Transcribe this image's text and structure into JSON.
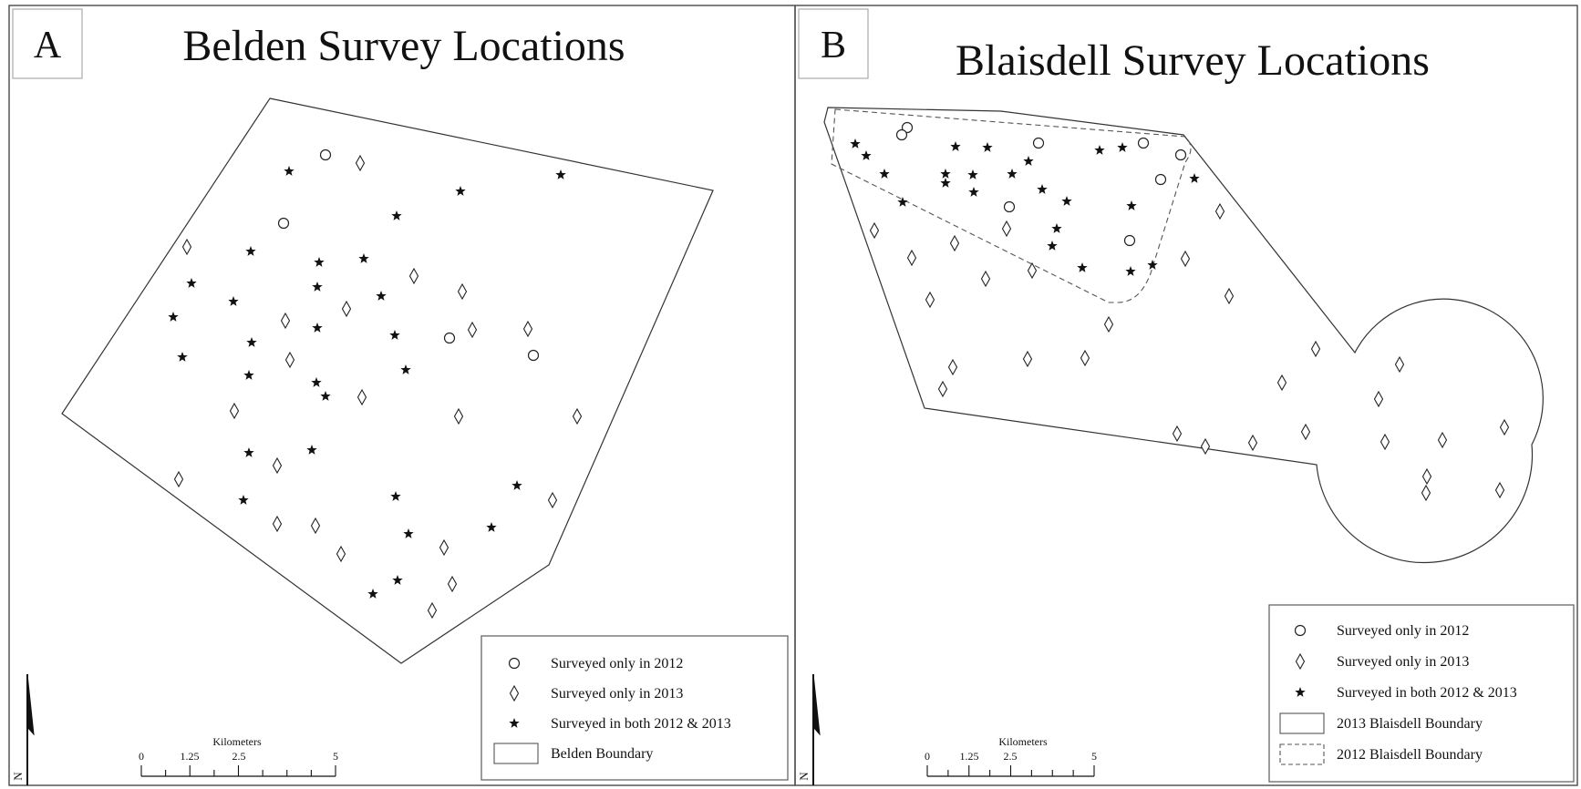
{
  "panels": [
    {
      "id": "A",
      "letter": "A",
      "title": "Belden Survey Locations",
      "scale_bar": {
        "unit_label": "Kilometers",
        "ticks": [
          "0",
          "1.25",
          "2.5",
          "5"
        ]
      },
      "north_label": "N",
      "legend": [
        {
          "symbol": "circle",
          "label": "Surveyed only in 2012"
        },
        {
          "symbol": "diamond",
          "label": "Surveyed only in 2013"
        },
        {
          "symbol": "star",
          "label": "Surveyed in both 2012 & 2013"
        },
        {
          "symbol": "boundary-solid",
          "label": "Belden Boundary"
        }
      ],
      "site_counts": {
        "surveyed_only_2012": 4,
        "surveyed_only_2013": 24,
        "surveyed_both": 29
      }
    },
    {
      "id": "B",
      "letter": "B",
      "title": "Blaisdell Survey Locations",
      "scale_bar": {
        "unit_label": "Kilometers",
        "ticks": [
          "0",
          "1.25",
          "2.5",
          "5"
        ]
      },
      "north_label": "N",
      "legend": [
        {
          "symbol": "circle",
          "label": "Surveyed only in 2012"
        },
        {
          "symbol": "diamond",
          "label": "Surveyed only in 2013"
        },
        {
          "symbol": "star",
          "label": "Surveyed in both 2012 & 2013"
        },
        {
          "symbol": "boundary-solid",
          "label": "2013 Blaisdell Boundary"
        },
        {
          "symbol": "boundary-dashed",
          "label": "2012 Blaisdell Boundary"
        }
      ],
      "site_counts": {
        "surveyed_only_2012": 8,
        "surveyed_only_2013": 28,
        "surveyed_both": 25
      }
    }
  ],
  "style": {
    "line_color": "#333333",
    "frame_color": "#555555",
    "legend_frame_color": "#999999"
  }
}
